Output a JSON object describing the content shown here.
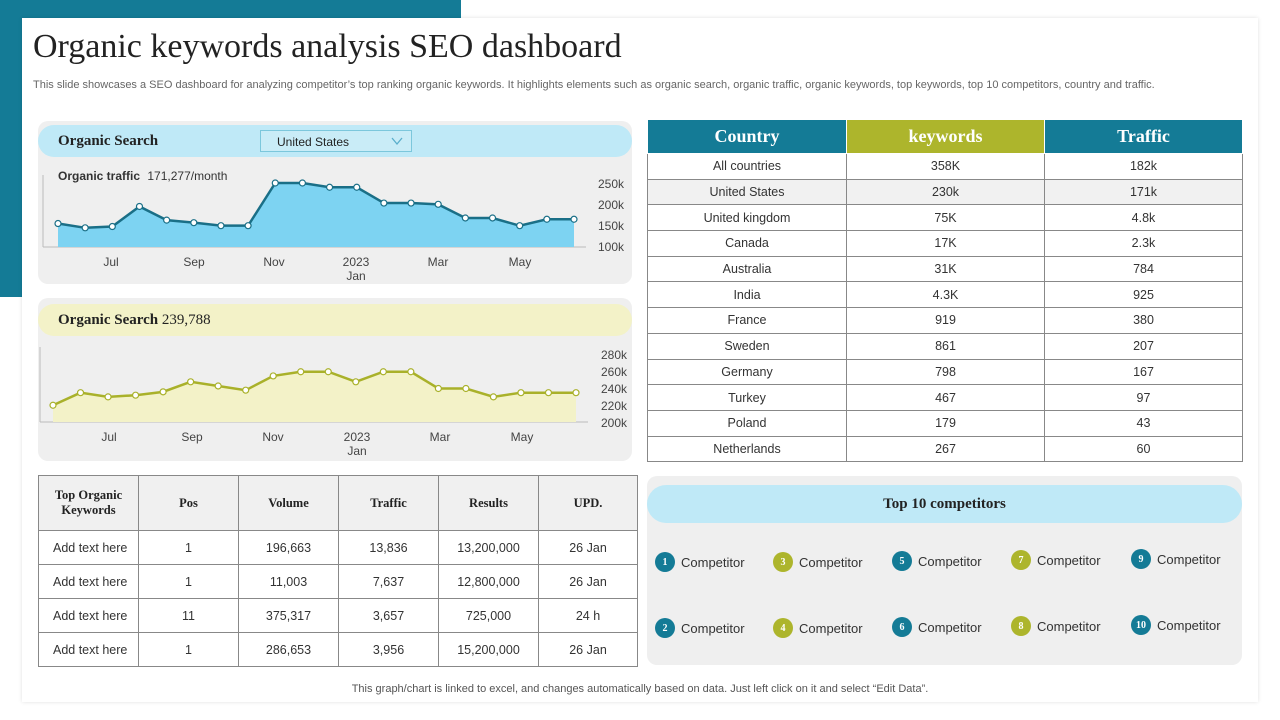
{
  "title": "Organic keywords analysis SEO dashboard",
  "subtitle": "This slide showcases a SEO dashboard for analyzing competitor’s top ranking organic keywords. It highlights elements such as organic search, organic traffic, organic keywords, top keywords, top 10 competitors, country and traffic.",
  "colors": {
    "teal": "#147b96",
    "olive": "#adb52c",
    "light_blue": "#bfe9f7",
    "light_yellow": "#f3f2c8",
    "area_blue": "#7dd3f2",
    "line_olive": "#a9b12a"
  },
  "organic_search_panel": {
    "label": "Organic Search",
    "country_select": "United States",
    "traffic_label": "Organic traffic",
    "traffic_value": "171,277/month"
  },
  "organic_search_total_panel": {
    "label": "Organic Search",
    "value": "239,788"
  },
  "chart_data": [
    {
      "type": "area",
      "name": "organic-traffic",
      "x_tick_labels": [
        "Jul",
        "Sep",
        "Nov",
        "2023",
        "Mar",
        "May"
      ],
      "x_sub_label": "Jan",
      "y_tick_labels": [
        "250k",
        "200k",
        "150k",
        "100k"
      ],
      "ylim": [
        100000,
        250000
      ],
      "values": [
        155000,
        145000,
        148000,
        195000,
        163000,
        157000,
        150000,
        150000,
        250000,
        250000,
        240000,
        240000,
        203000,
        203000,
        200000,
        168000,
        168000,
        150000,
        165000,
        165000
      ],
      "grid": false
    },
    {
      "type": "area",
      "name": "organic-search",
      "x_tick_labels": [
        "Jul",
        "Sep",
        "Nov",
        "2023",
        "Mar",
        "May"
      ],
      "x_sub_label": "Jan",
      "y_tick_labels": [
        "280k",
        "260k",
        "240k",
        "220k",
        "200k"
      ],
      "ylim": [
        200000,
        280000
      ],
      "values": [
        220000,
        235000,
        230000,
        232000,
        236000,
        248000,
        243000,
        238000,
        255000,
        260000,
        260000,
        248000,
        260000,
        260000,
        240000,
        240000,
        230000,
        235000,
        235000,
        235000
      ],
      "grid": false
    }
  ],
  "country_table": {
    "headers": [
      "Country",
      "keywords",
      "Traffic"
    ],
    "rows": [
      [
        "All countries",
        "358K",
        "182k"
      ],
      [
        "United States",
        "230k",
        "171k"
      ],
      [
        "United kingdom",
        "75K",
        "4.8k"
      ],
      [
        "Canada",
        "17K",
        "2.3k"
      ],
      [
        "Australia",
        "31K",
        "784"
      ],
      [
        "India",
        "4.3K",
        "925"
      ],
      [
        "France",
        "919",
        "380"
      ],
      [
        "Sweden",
        "861",
        "207"
      ],
      [
        "Germany",
        "798",
        "167"
      ],
      [
        "Turkey",
        "467",
        "97"
      ],
      [
        "Poland",
        "179",
        "43"
      ],
      [
        "Netherlands",
        "267",
        "60"
      ]
    ]
  },
  "keywords_table": {
    "headers": [
      "Top Organic Keywords",
      "Pos",
      "Volume",
      "Traffic",
      "Results",
      "UPD."
    ],
    "rows": [
      [
        "Add text here",
        "1",
        "196,663",
        "13,836",
        "13,200,000",
        "26 Jan"
      ],
      [
        "Add text here",
        "1",
        "11,003",
        "7,637",
        "12,800,000",
        "26 Jan"
      ],
      [
        "Add text here",
        "11",
        "375,317",
        "3,657",
        "725,000",
        "24 h"
      ],
      [
        "Add text here",
        "1",
        "286,653",
        "3,956",
        "15,200,000",
        "26 Jan"
      ]
    ]
  },
  "competitors": {
    "title": "Top 10 competitors",
    "items": [
      {
        "num": "1",
        "label": "Competitor",
        "color": "blue"
      },
      {
        "num": "2",
        "label": "Competitor",
        "color": "blue"
      },
      {
        "num": "3",
        "label": "Competitor",
        "color": "olive"
      },
      {
        "num": "4",
        "label": "Competitor",
        "color": "olive"
      },
      {
        "num": "5",
        "label": "Competitor",
        "color": "blue"
      },
      {
        "num": "6",
        "label": "Competitor",
        "color": "blue"
      },
      {
        "num": "7",
        "label": "Competitor",
        "color": "olive"
      },
      {
        "num": "8",
        "label": "Competitor",
        "color": "olive"
      },
      {
        "num": "9",
        "label": "Competitor",
        "color": "blue"
      },
      {
        "num": "10",
        "label": "Competitor",
        "color": "blue"
      }
    ]
  },
  "footnote": "This graph/chart is linked to excel, and changes automatically based on data. Just left click on it and select “Edit Data”."
}
